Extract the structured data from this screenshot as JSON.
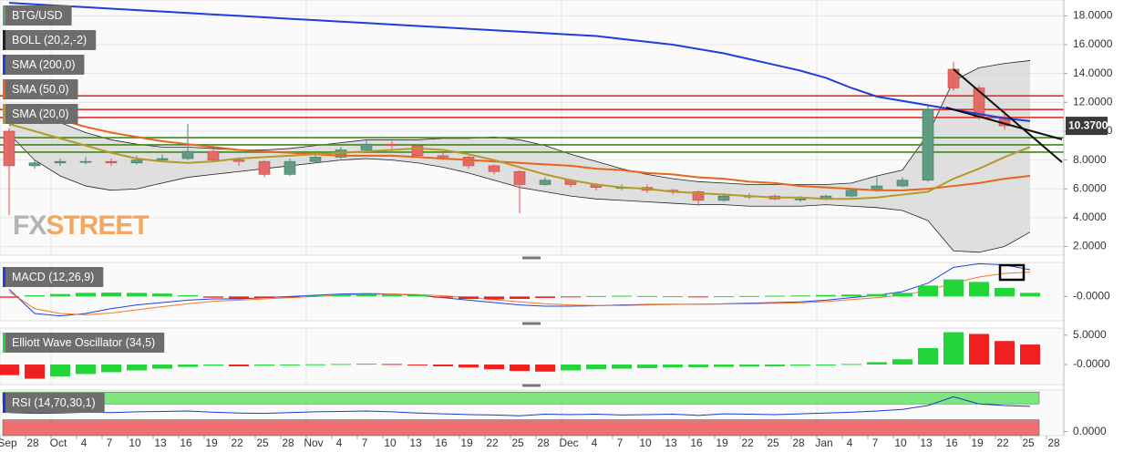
{
  "chart_data": [
    {
      "type": "candlestick",
      "name": "BTG/USD",
      "categories": [
        "Sep",
        "28",
        "Oct",
        "4",
        "7",
        "10",
        "13",
        "16",
        "19",
        "22",
        "25",
        "28",
        "Nov",
        "4",
        "7",
        "10",
        "13",
        "16",
        "19",
        "22",
        "25",
        "28",
        "Dec",
        "4",
        "7",
        "10",
        "13",
        "16",
        "19",
        "22",
        "25",
        "28",
        "Jan",
        "4",
        "7",
        "10",
        "13",
        "16",
        "19",
        "22",
        "25",
        "28"
      ],
      "open": [
        10.0,
        7.6,
        7.8,
        7.9,
        7.9,
        7.8,
        8.0,
        8.1,
        8.6,
        8.0,
        7.9,
        7.0,
        7.9,
        8.2,
        8.7,
        9.1,
        9.0,
        8.3,
        8.2,
        7.6,
        7.2,
        6.3,
        6.6,
        6.3,
        6.1,
        6.1,
        5.9,
        5.8,
        5.2,
        5.5,
        5.5,
        5.3,
        5.3,
        5.5,
        5.9,
        6.2,
        6.6,
        14.3,
        13.0,
        11.0,
        null,
        null
      ],
      "high": [
        10.2,
        8.0,
        8.1,
        8.2,
        8.1,
        8.3,
        8.4,
        10.5,
        8.7,
        8.2,
        8.0,
        8.1,
        8.5,
        8.9,
        9.4,
        9.3,
        9.1,
        8.5,
        8.3,
        7.7,
        7.3,
        6.8,
        6.7,
        6.4,
        6.3,
        6.3,
        6.0,
        5.9,
        5.7,
        5.7,
        5.6,
        5.5,
        5.6,
        6.0,
        6.9,
        6.8,
        11.8,
        14.8,
        13.2,
        11.5,
        null,
        null
      ],
      "low": [
        4.2,
        7.4,
        7.6,
        7.7,
        7.6,
        7.7,
        7.9,
        8.0,
        7.9,
        7.6,
        6.8,
        6.9,
        7.8,
        8.1,
        8.6,
        8.8,
        8.2,
        8.0,
        7.4,
        7.0,
        4.3,
        6.2,
        6.1,
        5.9,
        5.9,
        5.7,
        5.6,
        4.8,
        5.1,
        5.3,
        5.2,
        5.1,
        5.2,
        5.4,
        5.8,
        6.1,
        6.5,
        12.8,
        10.8,
        10.1,
        null,
        null
      ],
      "close": [
        7.6,
        7.8,
        7.9,
        7.9,
        7.8,
        8.0,
        8.1,
        8.6,
        8.0,
        7.9,
        7.0,
        7.9,
        8.2,
        8.7,
        9.1,
        9.0,
        8.3,
        8.2,
        7.6,
        7.2,
        6.3,
        6.6,
        6.3,
        6.1,
        6.1,
        5.9,
        5.8,
        5.2,
        5.5,
        5.5,
        5.3,
        5.3,
        5.5,
        5.9,
        6.2,
        6.6,
        11.5,
        13.0,
        11.0,
        10.37,
        null,
        null
      ],
      "colors": {
        "up": "#5f9c82",
        "down": "#e46a66"
      },
      "ylim": [
        1.4,
        19.1
      ],
      "yticks": [
        {
          "value": 2,
          "label": "2.0000"
        },
        {
          "value": 4,
          "label": "4.0000"
        },
        {
          "value": 6,
          "label": "6.0000"
        },
        {
          "value": 8,
          "label": "8.0000"
        },
        {
          "value": 10,
          "label": "10.0000"
        },
        {
          "value": 12,
          "label": "12.0000"
        },
        {
          "value": 14,
          "label": "14.0000"
        },
        {
          "value": 16,
          "label": "16.0000"
        },
        {
          "value": 18,
          "label": "18.0000"
        }
      ],
      "grid": true,
      "last_price": {
        "value": 10.37,
        "label": "10.3700"
      },
      "watermark": [
        "FX",
        "STREET"
      ],
      "bands": {
        "name": "BOLL (20,2,-2)",
        "color": "#222222",
        "fill": "#d6d6d6",
        "upper": [
          10.4,
          11.1,
          10.6,
          9.9,
          9.4,
          9.1,
          8.9,
          8.9,
          8.8,
          8.7,
          8.7,
          8.8,
          9.0,
          9.2,
          9.4,
          9.4,
          9.4,
          9.5,
          9.5,
          9.6,
          9.4,
          9.0,
          8.4,
          7.9,
          7.4,
          7.0,
          6.7,
          6.5,
          6.4,
          6.3,
          6.3,
          6.3,
          6.3,
          6.4,
          6.9,
          7.3,
          9.8,
          13.5,
          14.4,
          14.7,
          14.9,
          null
        ],
        "lower": [
          9.8,
          8.0,
          6.9,
          6.2,
          5.9,
          6.0,
          6.4,
          6.8,
          7.0,
          7.2,
          7.4,
          7.6,
          7.8,
          8.0,
          8.1,
          8.0,
          7.8,
          7.5,
          7.1,
          6.6,
          6.1,
          5.8,
          5.5,
          5.3,
          5.2,
          5.1,
          5.0,
          4.9,
          4.9,
          4.8,
          4.8,
          4.8,
          4.9,
          4.8,
          4.7,
          4.5,
          3.8,
          1.7,
          1.6,
          2.0,
          3.0,
          null
        ]
      },
      "series": [
        {
          "name": "SMA (200,0)",
          "color": "#1f3fd6",
          "values": [
            18.9,
            18.8,
            18.7,
            18.6,
            18.5,
            18.4,
            18.3,
            18.2,
            18.1,
            18.0,
            17.9,
            17.8,
            17.7,
            17.6,
            17.5,
            17.4,
            17.3,
            17.2,
            17.1,
            17.0,
            16.9,
            16.8,
            16.7,
            16.6,
            16.4,
            16.2,
            16.0,
            15.7,
            15.4,
            15.0,
            14.6,
            14.2,
            13.7,
            13.0,
            12.4,
            12.1,
            11.8,
            11.5,
            11.2,
            10.9,
            10.7,
            null
          ]
        },
        {
          "name": "SMA (50,0)",
          "color": "#e8651e",
          "values": [
            11.8,
            11.3,
            10.8,
            10.3,
            9.9,
            9.6,
            9.3,
            9.1,
            8.9,
            8.7,
            8.6,
            8.5,
            8.4,
            8.3,
            8.3,
            8.3,
            8.2,
            8.1,
            8.0,
            7.9,
            7.8,
            7.7,
            7.6,
            7.4,
            7.3,
            7.1,
            7.0,
            6.8,
            6.7,
            6.5,
            6.4,
            6.2,
            6.1,
            6.0,
            5.9,
            5.9,
            6.0,
            6.2,
            6.4,
            6.7,
            6.9,
            null
          ]
        },
        {
          "name": "SMA (20,0)",
          "color": "#b39a2a",
          "values": [
            10.5,
            10.0,
            9.5,
            9.0,
            8.5,
            8.1,
            7.9,
            7.8,
            7.9,
            8.1,
            8.2,
            8.3,
            8.4,
            8.5,
            8.6,
            8.7,
            8.8,
            8.7,
            8.4,
            8.0,
            7.5,
            7.0,
            6.6,
            6.3,
            6.1,
            6.0,
            5.8,
            5.7,
            5.6,
            5.5,
            5.4,
            5.4,
            5.3,
            5.3,
            5.4,
            5.6,
            5.8,
            6.7,
            7.4,
            8.2,
            8.9,
            null
          ]
        }
      ],
      "levels": [
        {
          "value": 12.45,
          "color": "#e0302a"
        },
        {
          "value": 11.5,
          "color": "#e0302a"
        },
        {
          "value": 10.95,
          "color": "#e0302a"
        },
        {
          "value": 9.55,
          "color": "#3f8a1c"
        },
        {
          "value": 9.05,
          "color": "#3f8a1c"
        },
        {
          "value": 8.55,
          "color": "#3f8a1c"
        }
      ]
    },
    {
      "type": "bar",
      "title": "MACD (12,26,9)",
      "color_by": "sign",
      "colors": {
        "up": "#22d63a",
        "down": "#f02020"
      },
      "values": [
        -0.05,
        0.05,
        0.1,
        0.15,
        0.16,
        0.15,
        0.12,
        0.05,
        -0.05,
        -0.08,
        -0.06,
        -0.03,
        0.03,
        0.08,
        0.1,
        0.08,
        0.05,
        -0.05,
        -0.1,
        -0.12,
        -0.1,
        -0.06,
        -0.02,
        0.02,
        0.03,
        0.02,
        0.01,
        -0.01,
        0.01,
        0.02,
        0.03,
        0.04,
        0.06,
        0.08,
        0.1,
        0.15,
        0.45,
        0.7,
        0.6,
        0.35,
        0.15,
        null
      ],
      "lines": [
        {
          "color": "#2040e0",
          "values": [
            0.3,
            -0.7,
            -0.8,
            -0.7,
            -0.5,
            -0.35,
            -0.25,
            -0.15,
            -0.1,
            -0.1,
            -0.05,
            0.0,
            0.05,
            0.1,
            0.12,
            0.1,
            0.05,
            -0.05,
            -0.15,
            -0.25,
            -0.35,
            -0.4,
            -0.4,
            -0.38,
            -0.35,
            -0.33,
            -0.32,
            -0.32,
            -0.3,
            -0.28,
            -0.25,
            -0.22,
            -0.15,
            -0.05,
            0.05,
            0.2,
            0.55,
            1.2,
            1.35,
            1.3,
            1.1,
            null
          ]
        },
        {
          "color": "#f07a2a",
          "values": [
            0.2,
            -0.5,
            -0.7,
            -0.75,
            -0.68,
            -0.55,
            -0.42,
            -0.3,
            -0.2,
            -0.15,
            -0.1,
            -0.05,
            0.0,
            0.05,
            0.08,
            0.1,
            0.08,
            0.03,
            -0.05,
            -0.13,
            -0.22,
            -0.3,
            -0.35,
            -0.37,
            -0.37,
            -0.35,
            -0.33,
            -0.32,
            -0.31,
            -0.3,
            -0.28,
            -0.26,
            -0.21,
            -0.13,
            -0.05,
            0.05,
            0.25,
            0.55,
            0.8,
            0.95,
            1.0,
            null
          ]
        }
      ],
      "ylim": [
        -1.0,
        1.4
      ],
      "yticks": [
        {
          "value": 0,
          "label": "-0.0000"
        }
      ]
    },
    {
      "type": "bar",
      "title": "Elliott Wave Oscillator (34,5)",
      "color_by": "change",
      "colors": {
        "up": "#22d63a",
        "down": "#f02020"
      },
      "values": [
        -1.8,
        -2.4,
        -2.0,
        -1.6,
        -1.3,
        -1.0,
        -0.7,
        -0.4,
        -0.2,
        -0.3,
        -0.2,
        -0.1,
        0.05,
        0.1,
        0.15,
        0.1,
        -0.1,
        -0.3,
        -0.5,
        -0.8,
        -1.1,
        -1.2,
        -1.0,
        -0.8,
        -0.7,
        -0.6,
        -0.5,
        -0.45,
        -0.4,
        -0.35,
        -0.3,
        -0.2,
        -0.1,
        0.1,
        0.4,
        0.9,
        2.8,
        5.5,
        5.2,
        4.0,
        3.4,
        null
      ],
      "ylim": [
        -3.4,
        6.2
      ],
      "yticks": [
        {
          "value": 5,
          "label": "5.0000"
        },
        {
          "value": 0,
          "label": "-0.0000"
        }
      ]
    },
    {
      "type": "line",
      "title": "RSI (14,70,30,1)",
      "color": "#2036d0",
      "values": [
        48,
        46,
        47,
        49,
        48,
        50,
        51,
        52,
        49,
        47,
        46,
        48,
        50,
        51,
        52,
        50,
        47,
        45,
        43,
        42,
        40,
        44,
        43,
        44,
        42,
        43,
        44,
        41,
        45,
        44,
        43,
        45,
        47,
        49,
        52,
        56,
        66,
        88,
        70,
        66,
        64,
        null
      ],
      "zones": [
        {
          "from": 70,
          "to": 100,
          "color": "#7ee67e"
        },
        {
          "from": -10,
          "to": 30,
          "color": "#f07070"
        }
      ],
      "ylim": [
        -10,
        105
      ],
      "yticks": [
        {
          "value": 0,
          "label": "0.0000"
        }
      ]
    }
  ]
}
